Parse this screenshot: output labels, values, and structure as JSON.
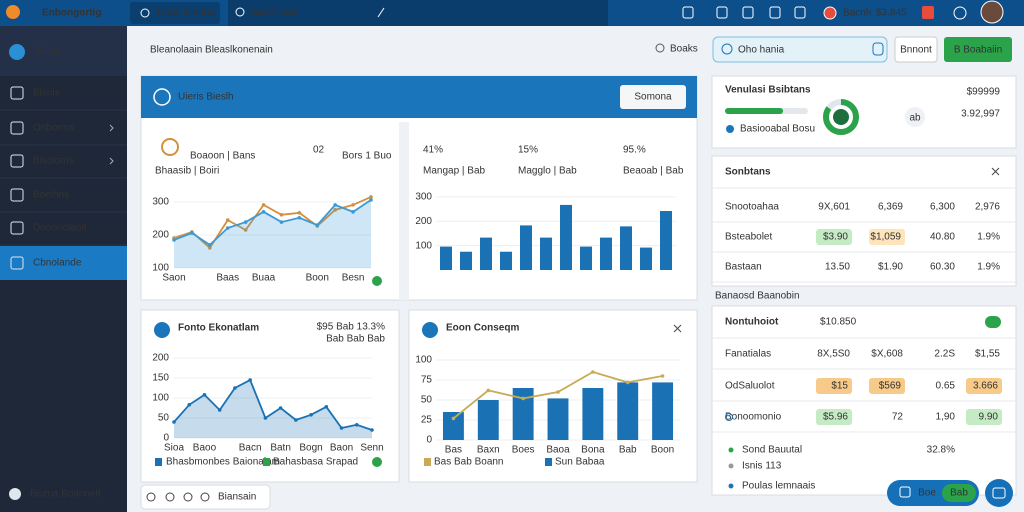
{
  "topbar": {
    "brand": "Enbongortig",
    "tab": "Duoo Biouna",
    "search": "Baell Bsan",
    "user": "Bacnh",
    "balance": "$3.845"
  },
  "sidebar": {
    "title": "Bisnis",
    "items": [
      "Bisnis",
      "Onborms",
      "Bisoloms",
      "Boeihns",
      "Dooonolaolt",
      "Cbnolande"
    ],
    "active": 5,
    "footer": "Biuma Boanneit"
  },
  "header": {
    "title": "Bleanolaain Bleaslkonenain",
    "search_link": "Boaks",
    "search_box": "Oho hania",
    "button": "Bnnont",
    "primary_button": "B Boabaiin"
  },
  "overview": {
    "title": "Uieris Bieslh",
    "button": "Somona",
    "card_a": {
      "label": "Boaoon | Bans",
      "value": "02",
      "value_note": "Bors 1 Buo",
      "subtitle": "Bhaasib | Boiri",
      "chart": {
        "type": "line",
        "categories": [
          "Saon",
          null,
          null,
          "Baas",
          null,
          "Buaa",
          null,
          null,
          "Boon",
          null,
          "Besn",
          null
        ],
        "ylim": [
          100,
          330
        ],
        "yticks": [
          100,
          200,
          300
        ],
        "series": [
          {
            "color": "#d4903a",
            "values": [
              191,
              209,
              161,
              245,
              215,
              291,
              261,
              267,
              227,
              276,
              291,
              315
            ]
          },
          {
            "color": "#3b9ad6",
            "area": true,
            "values": [
              185,
              206,
              170,
              221,
              239,
              270,
              239,
              252,
              230,
              291,
              270,
              306
            ]
          }
        ]
      }
    },
    "card_b": {
      "stats": [
        {
          "value": "41%",
          "label": "Mangap | Bab"
        },
        {
          "value": "15%",
          "label": "Magglo | Bab"
        },
        {
          "value": "95.%",
          "label": "Beaoab | Bab"
        }
      ],
      "chart": {
        "type": "bar",
        "color": "#1a72b5",
        "ylim": [
          0,
          320
        ],
        "yticks": [
          100,
          200,
          300
        ],
        "values": [
          96,
          75,
          133,
          75,
          183,
          133,
          267,
          96,
          133,
          179,
          92,
          242
        ]
      }
    }
  },
  "trends": {
    "title": "Fonto Ekonatlam",
    "value": "$95 Bab 13.3%",
    "note": "Bab Bab Bab",
    "legend": [
      "Bhasbmonbes Baionalam",
      "Bahasbasa Srapad"
    ],
    "chart": {
      "type": "line",
      "categories": [
        "Sioa",
        null,
        "Baoo",
        null,
        null,
        "Bacn",
        null,
        "Batn",
        null,
        "Bogn",
        null,
        "Baon",
        null,
        "Senn"
      ],
      "ylim": [
        0,
        200
      ],
      "yticks": [
        0,
        50,
        100,
        150,
        200
      ],
      "series": [
        {
          "color": "#1a72b5",
          "area": true,
          "values": [
            40,
            83,
            108,
            70,
            125,
            145,
            50,
            75,
            45,
            58,
            78,
            25,
            33,
            20
          ]
        }
      ]
    }
  },
  "consumption": {
    "title": "Eoon Conseqm",
    "legend": [
      "Bas Bab Boann",
      "Sun Babaa"
    ],
    "chart": {
      "type": "combo",
      "categories": [
        "Bas",
        "Baxn",
        "Boes",
        "Baoa",
        "Bona",
        "Bab",
        "Boon"
      ],
      "ylim": [
        0,
        100
      ],
      "yticks": [
        0,
        25,
        50,
        75,
        100
      ],
      "series": [
        {
          "type": "line",
          "color": "#c9ab55",
          "values": [
            27,
            62,
            52,
            60,
            85,
            72,
            80
          ]
        },
        {
          "type": "bar",
          "color": "#1a72b5",
          "values": [
            35,
            50,
            65,
            52,
            65,
            72,
            72
          ]
        }
      ]
    }
  },
  "summary": {
    "title": "Venulasi Bsibtans",
    "subtitle": "Basiooabal Bosu",
    "progress": 70,
    "donut": 85,
    "avatar": "ab",
    "amount": "$99999",
    "amount_sub": "3.92,997"
  },
  "table1": {
    "title": "Sonbtans",
    "rows": [
      [
        "Snootoahaa",
        "9X,601",
        "6,369",
        "6,300",
        "2,976"
      ],
      [
        "Bsteabolet",
        "$3.90",
        "$1,059",
        "40.80",
        "1.9%"
      ],
      [
        "Bastaan",
        "13.50",
        "$1.90",
        "60.30",
        "1.9%"
      ]
    ]
  },
  "note": "Banaosd Baanobin",
  "table2": {
    "title": "Nontuhoiot",
    "subtitle": "$10.850",
    "rows": [
      [
        "Fanatialas",
        "8X,5S0",
        "$X,608",
        "2.2S",
        "$1,55"
      ],
      [
        "OdSaluolot",
        "$15",
        "$569",
        "0.65",
        "3.666"
      ],
      [
        "Bonoomonio",
        "$5.96",
        "72",
        "1,90",
        "9.90"
      ]
    ],
    "list": [
      {
        "label": "Sond Bauutal",
        "value": "32.8%"
      },
      {
        "label": "Isnis 113"
      },
      {
        "label": "Poulas lemnaais"
      }
    ]
  },
  "chat": {
    "button": "Boe",
    "badge": "Bab"
  },
  "toolbar": {
    "label": "Biansain"
  }
}
